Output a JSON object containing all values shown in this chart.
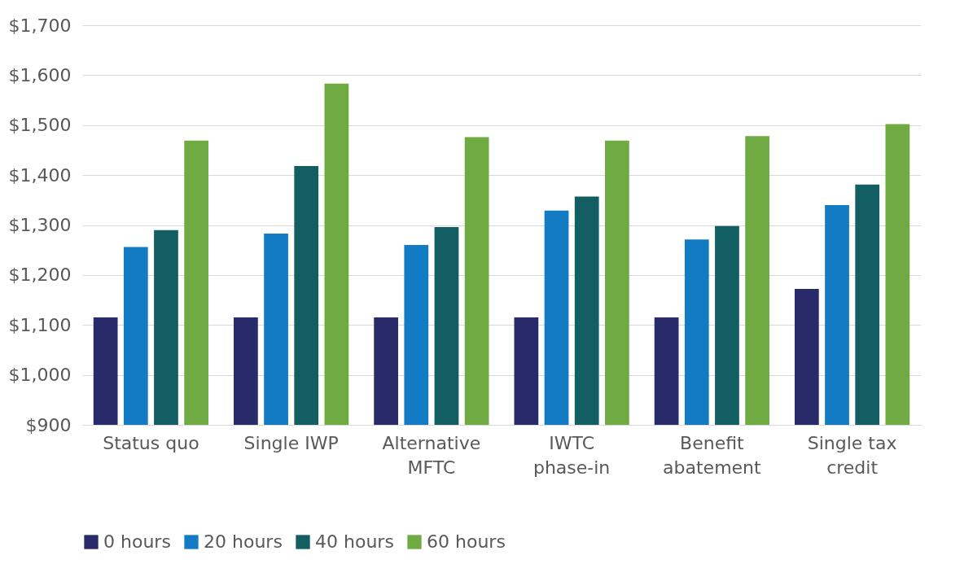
{
  "chart_data": {
    "type": "bar",
    "categories": [
      "Status quo",
      "Single IWP",
      "Alternative MFTC",
      "IWTC phase-in",
      "Benefit abatement",
      "Single tax credit"
    ],
    "series": [
      {
        "name": "0 hours",
        "color": "#282a6a",
        "values": [
          1115,
          1115,
          1115,
          1115,
          1115,
          1172
        ]
      },
      {
        "name": "20 hours",
        "color": "#127bc4",
        "values": [
          1256,
          1283,
          1260,
          1329,
          1271,
          1340
        ]
      },
      {
        "name": "40 hours",
        "color": "#135e63",
        "values": [
          1290,
          1418,
          1296,
          1357,
          1298,
          1381
        ]
      },
      {
        "name": "60 hours",
        "color": "#70aa42",
        "values": [
          1469,
          1583,
          1476,
          1469,
          1478,
          1502
        ]
      }
    ],
    "ylim": [
      900,
      1700
    ],
    "yticks": [
      {
        "value": 900,
        "label": "$900"
      },
      {
        "value": 1000,
        "label": "$1,000"
      },
      {
        "value": 1100,
        "label": "$1,100"
      },
      {
        "value": 1200,
        "label": "$1,200"
      },
      {
        "value": 1300,
        "label": "$1,300"
      },
      {
        "value": 1400,
        "label": "$1,400"
      },
      {
        "value": 1500,
        "label": "$1,500"
      },
      {
        "value": 1600,
        "label": "$1,600"
      },
      {
        "value": 1700,
        "label": "$1,700"
      }
    ],
    "grid": "y",
    "legend": "bottom"
  }
}
